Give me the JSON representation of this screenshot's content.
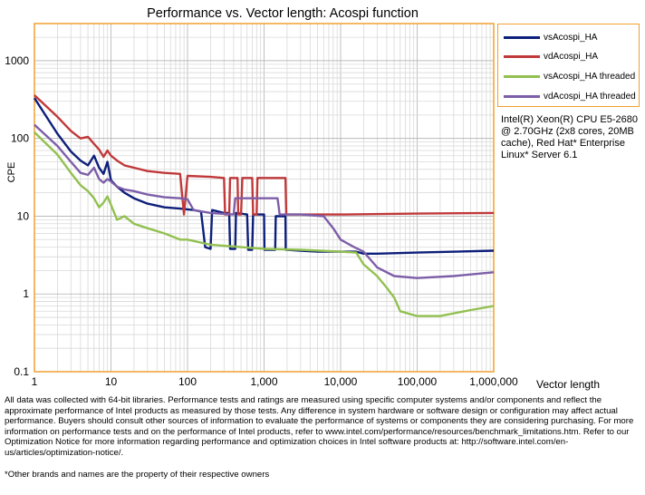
{
  "chart_data": {
    "type": "line",
    "title": "Performance vs. Vector length: Acospi function",
    "xlabel": "Vector length",
    "ylabel": "CPE",
    "x_scale": "log",
    "y_scale": "log",
    "xlim": [
      1,
      1000000
    ],
    "ylim": [
      0.1,
      3000
    ],
    "x_ticks": [
      {
        "value": 1,
        "label": "1"
      },
      {
        "value": 10,
        "label": "10"
      },
      {
        "value": 100,
        "label": "100"
      },
      {
        "value": 1000,
        "label": "1,000"
      },
      {
        "value": 10000,
        "label": "10,000"
      },
      {
        "value": 100000,
        "label": "100,000"
      },
      {
        "value": 1000000,
        "label": "1,000,000"
      }
    ],
    "y_ticks": [
      {
        "value": 0.1,
        "label": "0.1"
      },
      {
        "value": 1,
        "label": "1"
      },
      {
        "value": 10,
        "label": "10"
      },
      {
        "value": 100,
        "label": "100"
      },
      {
        "value": 1000,
        "label": "1000"
      }
    ],
    "grid": true,
    "legend_position": "top-right",
    "series": [
      {
        "name": "vsAcospi_HA",
        "color": "#0d1f7a",
        "points": [
          [
            1,
            330
          ],
          [
            2,
            115
          ],
          [
            3,
            68
          ],
          [
            4,
            52
          ],
          [
            5,
            45
          ],
          [
            6,
            60
          ],
          [
            7,
            42
          ],
          [
            8,
            35
          ],
          [
            9,
            50
          ],
          [
            10,
            29
          ],
          [
            12,
            24
          ],
          [
            15,
            20
          ],
          [
            20,
            17
          ],
          [
            30,
            14.5
          ],
          [
            50,
            13
          ],
          [
            80,
            12.5
          ],
          [
            120,
            12
          ],
          [
            150,
            11.5
          ],
          [
            170,
            4
          ],
          [
            200,
            3.8
          ],
          [
            210,
            12
          ],
          [
            300,
            11
          ],
          [
            350,
            11
          ],
          [
            360,
            3.8
          ],
          [
            420,
            3.8
          ],
          [
            430,
            11
          ],
          [
            600,
            10.5
          ],
          [
            620,
            3.7
          ],
          [
            700,
            3.7
          ],
          [
            720,
            10.5
          ],
          [
            1000,
            10.5
          ],
          [
            1010,
            3.7
          ],
          [
            1400,
            3.7
          ],
          [
            1420,
            10
          ],
          [
            1900,
            10
          ],
          [
            1920,
            3.7
          ],
          [
            2000,
            3.7
          ],
          [
            3000,
            3.6
          ],
          [
            5000,
            3.5
          ],
          [
            10000,
            3.5
          ],
          [
            16000,
            3.5
          ],
          [
            20000,
            3.3
          ],
          [
            30000,
            3.3
          ],
          [
            100000,
            3.4
          ],
          [
            1000000,
            3.6
          ]
        ]
      },
      {
        "name": "vdAcospi_HA",
        "color": "#c0393a",
        "points": [
          [
            1,
            360
          ],
          [
            2,
            190
          ],
          [
            3,
            125
          ],
          [
            4,
            100
          ],
          [
            5,
            105
          ],
          [
            6,
            85
          ],
          [
            7,
            72
          ],
          [
            8,
            58
          ],
          [
            9,
            70
          ],
          [
            10,
            60
          ],
          [
            12,
            52
          ],
          [
            15,
            45
          ],
          [
            20,
            42
          ],
          [
            30,
            38
          ],
          [
            50,
            36
          ],
          [
            80,
            35
          ],
          [
            90,
            10.5
          ],
          [
            100,
            33
          ],
          [
            200,
            32
          ],
          [
            300,
            31
          ],
          [
            310,
            10.5
          ],
          [
            350,
            10.5
          ],
          [
            360,
            31
          ],
          [
            450,
            31
          ],
          [
            460,
            10.5
          ],
          [
            500,
            10.5
          ],
          [
            520,
            31
          ],
          [
            700,
            31
          ],
          [
            720,
            10.5
          ],
          [
            800,
            10.5
          ],
          [
            820,
            31
          ],
          [
            1900,
            31
          ],
          [
            1950,
            10.5
          ],
          [
            3000,
            10.5
          ],
          [
            10000,
            10.5
          ],
          [
            100000,
            10.8
          ],
          [
            1000000,
            11
          ]
        ]
      },
      {
        "name": "vsAcospi_HA threaded",
        "color": "#92c050",
        "points": [
          [
            1,
            120
          ],
          [
            2,
            62
          ],
          [
            3,
            36
          ],
          [
            4,
            25
          ],
          [
            5,
            21
          ],
          [
            6,
            17
          ],
          [
            7,
            13
          ],
          [
            8,
            15
          ],
          [
            9,
            18
          ],
          [
            10,
            14
          ],
          [
            12,
            9
          ],
          [
            15,
            10
          ],
          [
            20,
            8
          ],
          [
            30,
            7
          ],
          [
            50,
            6
          ],
          [
            80,
            5
          ],
          [
            100,
            5
          ],
          [
            200,
            4.3
          ],
          [
            500,
            4
          ],
          [
            1000,
            3.8
          ],
          [
            3000,
            3.7
          ],
          [
            10000,
            3.5
          ],
          [
            16000,
            3.4
          ],
          [
            20000,
            2.4
          ],
          [
            30000,
            1.7
          ],
          [
            40000,
            1.2
          ],
          [
            50000,
            0.9
          ],
          [
            60000,
            0.6
          ],
          [
            100000,
            0.52
          ],
          [
            200000,
            0.52
          ],
          [
            500000,
            0.62
          ],
          [
            1000000,
            0.7
          ]
        ]
      },
      {
        "name": "vdAcospi_HA threaded",
        "color": "#7d5ea8",
        "points": [
          [
            1,
            150
          ],
          [
            2,
            80
          ],
          [
            3,
            50
          ],
          [
            4,
            36
          ],
          [
            5,
            34
          ],
          [
            6,
            42
          ],
          [
            7,
            30
          ],
          [
            8,
            27
          ],
          [
            9,
            30
          ],
          [
            10,
            28
          ],
          [
            12,
            24
          ],
          [
            15,
            22
          ],
          [
            20,
            21
          ],
          [
            30,
            19
          ],
          [
            50,
            17.5
          ],
          [
            80,
            17
          ],
          [
            100,
            16.5
          ],
          [
            120,
            12
          ],
          [
            200,
            11
          ],
          [
            400,
            10.5
          ],
          [
            420,
            17
          ],
          [
            800,
            17
          ],
          [
            1500,
            17
          ],
          [
            1600,
            10.5
          ],
          [
            3000,
            10.5
          ],
          [
            6000,
            10
          ],
          [
            8000,
            7
          ],
          [
            10000,
            5
          ],
          [
            15000,
            4
          ],
          [
            20000,
            3.5
          ],
          [
            30000,
            2.2
          ],
          [
            50000,
            1.7
          ],
          [
            100000,
            1.6
          ],
          [
            300000,
            1.7
          ],
          [
            1000000,
            1.9
          ]
        ]
      }
    ]
  },
  "cpu_note": "Intel(R) Xeon(R) CPU E5-2680 @ 2.70GHz (2x8 cores, 20MB cache), Red Hat* Enterprise Linux* Server 6.1",
  "disclaimer": "All data was collected with 64-bit libraries. Performance tests and ratings are measured using specific computer systems and/or components and reflect the approximate performance of Intel products as measured by those tests. Any difference in system hardware or software design or configuration may affect actual performance. Buyers should consult other sources of information to evaluate the performance of systems or components they are considering purchasing. For more information on performance tests and on the performance of Intel products, refer to www.intel.com/performance/resources/benchmark_limitations.htm. Refer to our Optimization Notice for more information regarding performance and optimization choices in Intel software products at: http://software.intel.com/en-us/articles/optimization-notice/.",
  "footnote": "*Other brands and names are the property of their respective owners"
}
